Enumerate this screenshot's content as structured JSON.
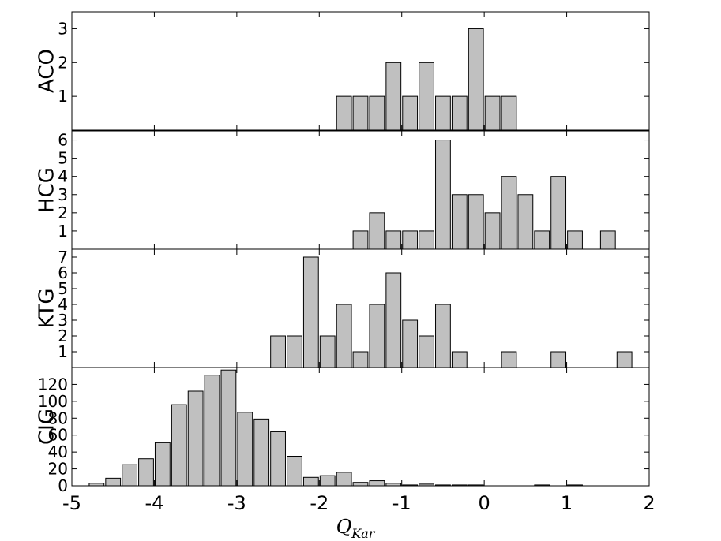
{
  "chart_data": {
    "type": "bar",
    "xlabel_main": "Q",
    "xlabel_sub": "Kar",
    "xlim": [
      -5,
      2
    ],
    "xticks": [
      -5,
      -4,
      -3,
      -2,
      -1,
      0,
      1,
      2
    ],
    "xtick_labels": [
      "-5",
      "-4",
      "-3",
      "-2",
      "-1",
      "0",
      "1",
      "2"
    ],
    "bin_width": 0.2,
    "bar_color": "#c0c0c0",
    "edge_color": "#000000",
    "panels": [
      {
        "name": "ACO",
        "ylim": [
          0,
          3.5
        ],
        "yticks": [
          1,
          2,
          3
        ],
        "ytick_labels": [
          "1",
          "2",
          "3"
        ],
        "bars": [
          {
            "x": -1.7,
            "y": 1
          },
          {
            "x": -1.5,
            "y": 1
          },
          {
            "x": -1.3,
            "y": 1
          },
          {
            "x": -1.1,
            "y": 2
          },
          {
            "x": -0.9,
            "y": 1
          },
          {
            "x": -0.7,
            "y": 2
          },
          {
            "x": -0.5,
            "y": 1
          },
          {
            "x": -0.3,
            "y": 1
          },
          {
            "x": -0.1,
            "y": 3
          },
          {
            "x": 0.1,
            "y": 1
          },
          {
            "x": 0.3,
            "y": 1
          }
        ]
      },
      {
        "name": "HCG",
        "ylim": [
          0,
          6.5
        ],
        "yticks": [
          1,
          2,
          3,
          4,
          5,
          6
        ],
        "ytick_labels": [
          "1",
          "2",
          "3",
          "4",
          "5",
          "6"
        ],
        "bars": [
          {
            "x": -1.5,
            "y": 1
          },
          {
            "x": -1.3,
            "y": 2
          },
          {
            "x": -1.1,
            "y": 1
          },
          {
            "x": -0.9,
            "y": 1
          },
          {
            "x": -0.7,
            "y": 1
          },
          {
            "x": -0.5,
            "y": 6
          },
          {
            "x": -0.3,
            "y": 3
          },
          {
            "x": -0.1,
            "y": 3
          },
          {
            "x": 0.1,
            "y": 2
          },
          {
            "x": 0.3,
            "y": 4
          },
          {
            "x": 0.5,
            "y": 3
          },
          {
            "x": 0.7,
            "y": 1
          },
          {
            "x": 0.9,
            "y": 4
          },
          {
            "x": 1.1,
            "y": 1
          },
          {
            "x": 1.5,
            "y": 1
          }
        ]
      },
      {
        "name": "KTG",
        "ylim": [
          0,
          7.5
        ],
        "yticks": [
          1,
          2,
          3,
          4,
          5,
          6,
          7
        ],
        "ytick_labels": [
          "1",
          "2",
          "3",
          "4",
          "5",
          "6",
          "7"
        ],
        "bars": [
          {
            "x": -2.5,
            "y": 2
          },
          {
            "x": -2.3,
            "y": 2
          },
          {
            "x": -2.1,
            "y": 7
          },
          {
            "x": -1.9,
            "y": 2
          },
          {
            "x": -1.7,
            "y": 4
          },
          {
            "x": -1.5,
            "y": 1
          },
          {
            "x": -1.3,
            "y": 4
          },
          {
            "x": -1.1,
            "y": 6
          },
          {
            "x": -0.9,
            "y": 3
          },
          {
            "x": -0.7,
            "y": 2
          },
          {
            "x": -0.5,
            "y": 4
          },
          {
            "x": -0.3,
            "y": 1
          },
          {
            "x": 0.3,
            "y": 1
          },
          {
            "x": 0.9,
            "y": 1
          },
          {
            "x": 1.7,
            "y": 1
          }
        ]
      },
      {
        "name": "CIG",
        "ylim": [
          0,
          140
        ],
        "yticks": [
          0,
          20,
          40,
          60,
          80,
          100,
          120
        ],
        "ytick_labels": [
          "0",
          "20",
          "40",
          "60",
          "80",
          "100",
          "120"
        ],
        "bars": [
          {
            "x": -4.7,
            "y": 3
          },
          {
            "x": -4.5,
            "y": 9
          },
          {
            "x": -4.3,
            "y": 25
          },
          {
            "x": -4.1,
            "y": 32
          },
          {
            "x": -3.9,
            "y": 51
          },
          {
            "x": -3.7,
            "y": 96
          },
          {
            "x": -3.5,
            "y": 112
          },
          {
            "x": -3.3,
            "y": 131
          },
          {
            "x": -3.1,
            "y": 137
          },
          {
            "x": -2.9,
            "y": 87
          },
          {
            "x": -2.7,
            "y": 79
          },
          {
            "x": -2.5,
            "y": 64
          },
          {
            "x": -2.3,
            "y": 35
          },
          {
            "x": -2.1,
            "y": 10
          },
          {
            "x": -1.9,
            "y": 12
          },
          {
            "x": -1.7,
            "y": 16
          },
          {
            "x": -1.5,
            "y": 4
          },
          {
            "x": -1.3,
            "y": 6
          },
          {
            "x": -1.1,
            "y": 3
          },
          {
            "x": -0.9,
            "y": 1
          },
          {
            "x": -0.7,
            "y": 2
          },
          {
            "x": -0.5,
            "y": 1
          },
          {
            "x": -0.3,
            "y": 1
          },
          {
            "x": -0.1,
            "y": 1
          },
          {
            "x": 0.7,
            "y": 1
          },
          {
            "x": 1.1,
            "y": 1
          }
        ]
      }
    ]
  }
}
